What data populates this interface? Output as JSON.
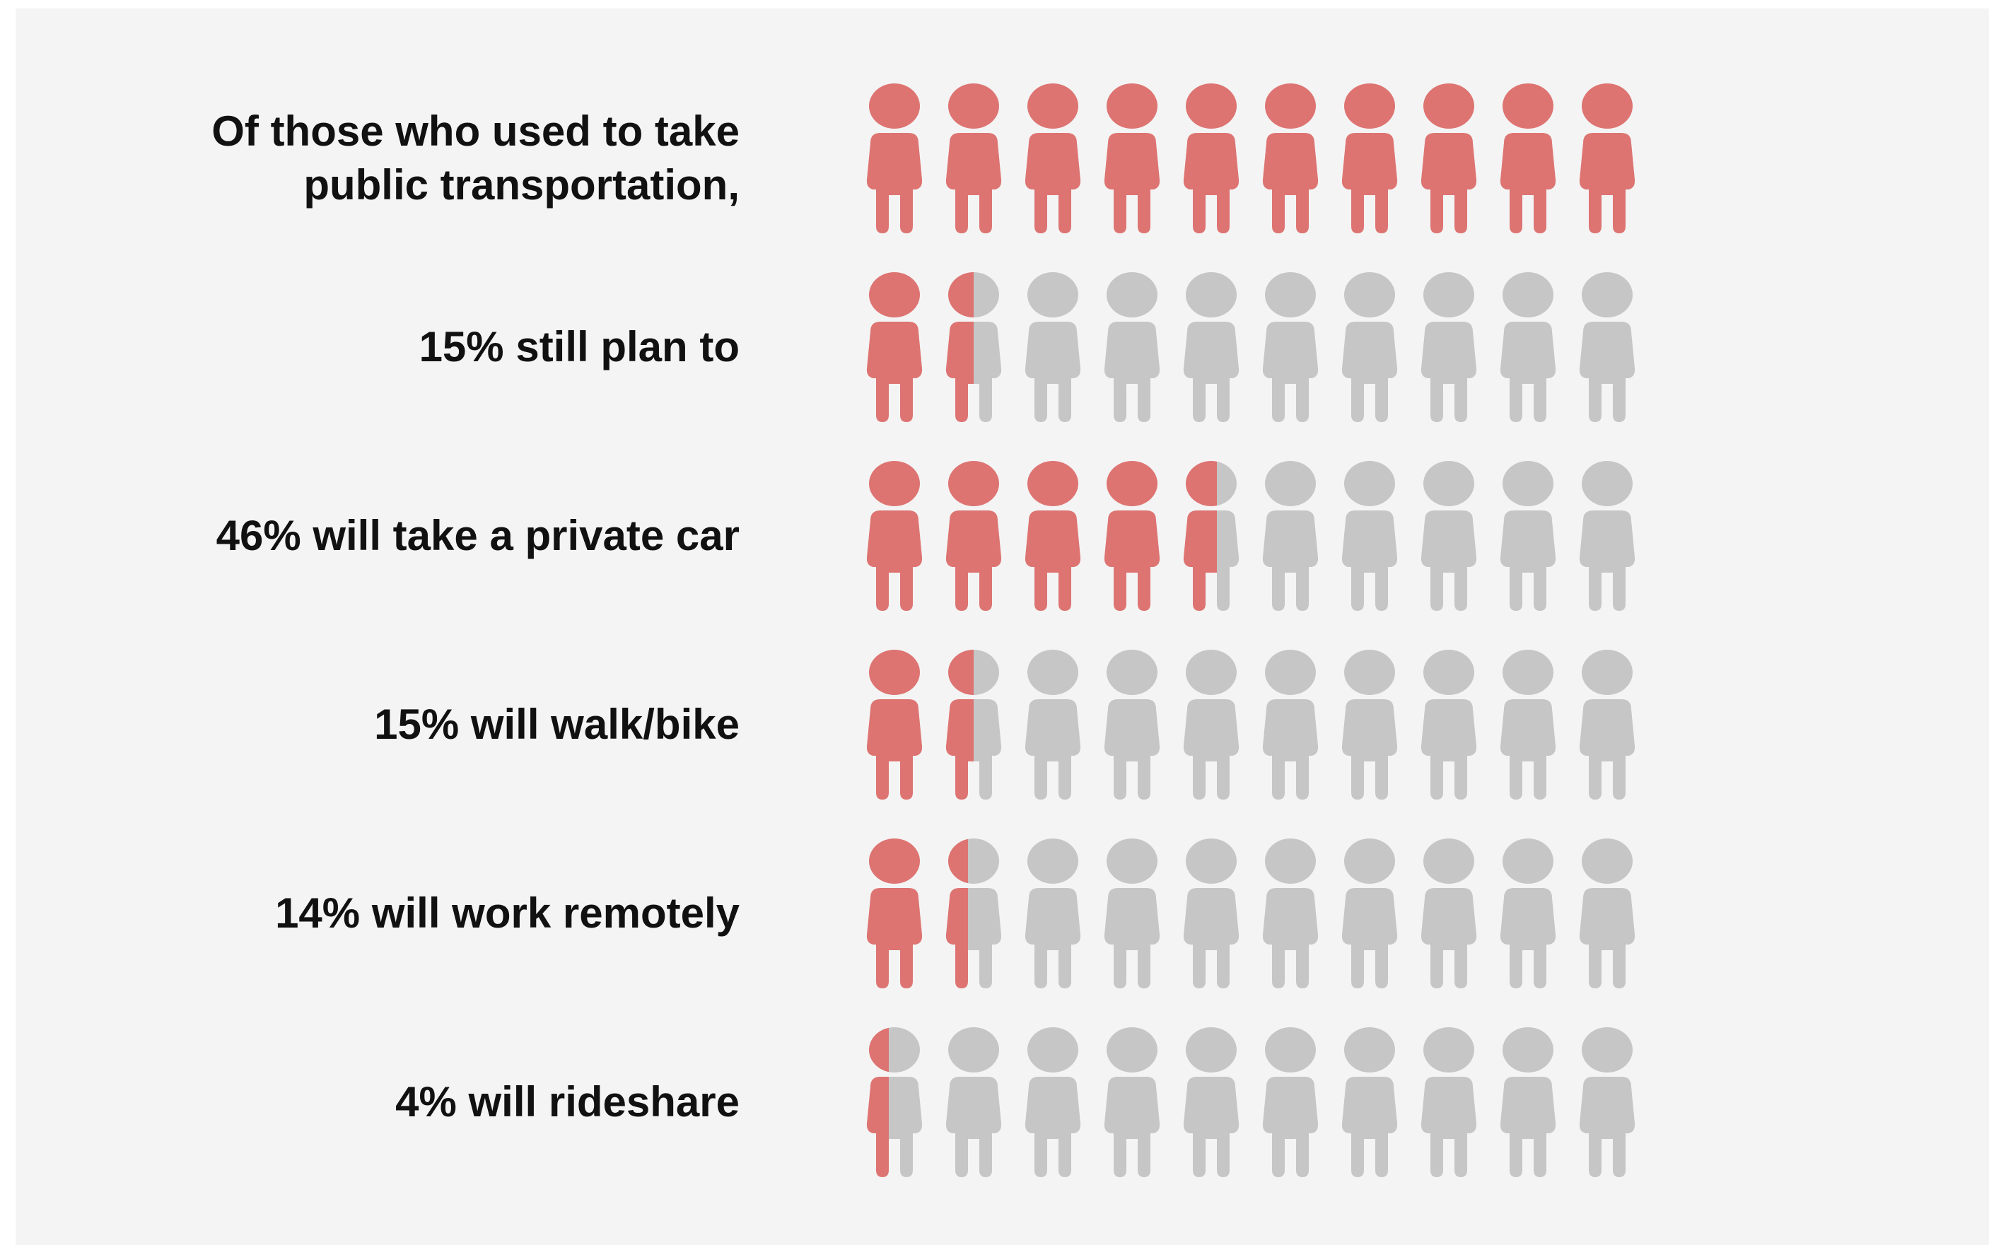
{
  "chart_data": {
    "type": "pictogram",
    "icons_per_row": 10,
    "icon_name": "person-icon",
    "colors": {
      "filled": "#dd7472",
      "empty": "#c6c6c6",
      "background": "#f4f4f4",
      "text": "#111111"
    },
    "rows": [
      {
        "label_lines": [
          "Of those who used to take",
          "public transportation,"
        ],
        "percent": 100
      },
      {
        "label_lines": [
          "15% still plan to"
        ],
        "percent": 15
      },
      {
        "label_lines": [
          "46% will take a private car"
        ],
        "percent": 46
      },
      {
        "label_lines": [
          "15% will walk/bike"
        ],
        "percent": 15
      },
      {
        "label_lines": [
          "14% will work remotely"
        ],
        "percent": 14
      },
      {
        "label_lines": [
          "4% will rideshare"
        ],
        "percent": 4
      }
    ]
  }
}
